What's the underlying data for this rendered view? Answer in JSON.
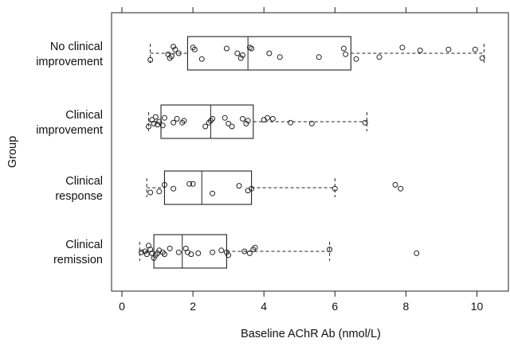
{
  "chart_data": {
    "type": "boxplot",
    "xlabel": "Baseline AChR Ab (nmol/L)",
    "ylabel": "Group",
    "xlim": [
      -0.2,
      10.9
    ],
    "xticks": [
      0,
      2,
      4,
      6,
      8,
      10
    ],
    "grid": false,
    "groups": [
      {
        "label_lines": [
          "No clinical",
          "improvement"
        ],
        "whisker_low": 0.8,
        "q1": 1.85,
        "median": 3.55,
        "q3": 6.45,
        "whisker_high": 10.2,
        "points": [
          {
            "x": 0.8,
            "j": 0.35
          },
          {
            "x": 1.3,
            "j": 0.05
          },
          {
            "x": 1.35,
            "j": 0.25
          },
          {
            "x": 1.4,
            "j": 0.15
          },
          {
            "x": 1.45,
            "j": -0.35
          },
          {
            "x": 1.5,
            "j": -0.2
          },
          {
            "x": 1.6,
            "j": 0.0
          },
          {
            "x": 2.0,
            "j": -0.3
          },
          {
            "x": 2.05,
            "j": -0.2
          },
          {
            "x": 2.25,
            "j": 0.3
          },
          {
            "x": 2.95,
            "j": -0.25
          },
          {
            "x": 3.25,
            "j": 0.0
          },
          {
            "x": 3.35,
            "j": 0.25
          },
          {
            "x": 3.4,
            "j": 0.1
          },
          {
            "x": 3.6,
            "j": -0.3
          },
          {
            "x": 3.65,
            "j": -0.25
          },
          {
            "x": 4.15,
            "j": 0.0
          },
          {
            "x": 4.45,
            "j": 0.2
          },
          {
            "x": 5.55,
            "j": 0.2
          },
          {
            "x": 6.25,
            "j": -0.25
          },
          {
            "x": 6.3,
            "j": 0.05
          },
          {
            "x": 6.6,
            "j": 0.3
          },
          {
            "x": 7.25,
            "j": 0.2
          },
          {
            "x": 7.9,
            "j": -0.3
          },
          {
            "x": 8.4,
            "j": -0.15
          },
          {
            "x": 9.2,
            "j": -0.2
          },
          {
            "x": 9.95,
            "j": -0.2
          },
          {
            "x": 10.15,
            "j": 0.25
          }
        ]
      },
      {
        "label_lines": [
          "Clinical",
          "improvement"
        ],
        "whisker_low": 0.75,
        "q1": 1.1,
        "median": 2.5,
        "q3": 3.7,
        "whisker_high": 6.9,
        "points": [
          {
            "x": 0.75,
            "j": 0.25
          },
          {
            "x": 0.85,
            "j": -0.1
          },
          {
            "x": 0.9,
            "j": 0.1
          },
          {
            "x": 0.95,
            "j": -0.25
          },
          {
            "x": 1.0,
            "j": 0.15
          },
          {
            "x": 1.05,
            "j": 0.0
          },
          {
            "x": 1.15,
            "j": 0.2
          },
          {
            "x": 1.2,
            "j": -0.2
          },
          {
            "x": 1.45,
            "j": 0.05
          },
          {
            "x": 1.55,
            "j": -0.15
          },
          {
            "x": 1.7,
            "j": 0.05
          },
          {
            "x": 1.75,
            "j": -0.05
          },
          {
            "x": 2.35,
            "j": 0.25
          },
          {
            "x": 2.45,
            "j": 0.05
          },
          {
            "x": 2.5,
            "j": -0.05
          },
          {
            "x": 2.55,
            "j": -0.15
          },
          {
            "x": 2.9,
            "j": -0.2
          },
          {
            "x": 3.0,
            "j": 0.1
          },
          {
            "x": 3.1,
            "j": 0.25
          },
          {
            "x": 3.4,
            "j": -0.15
          },
          {
            "x": 3.5,
            "j": 0.1
          },
          {
            "x": 3.55,
            "j": -0.05
          },
          {
            "x": 4.0,
            "j": -0.1
          },
          {
            "x": 4.1,
            "j": -0.2
          },
          {
            "x": 4.25,
            "j": -0.15
          },
          {
            "x": 4.75,
            "j": 0.05
          },
          {
            "x": 5.35,
            "j": 0.1
          },
          {
            "x": 6.85,
            "j": 0.05
          }
        ]
      },
      {
        "label_lines": [
          "Clinical",
          "response"
        ],
        "whisker_low": 0.7,
        "q1": 1.2,
        "median": 2.25,
        "q3": 3.65,
        "whisker_high": 6.0,
        "points": [
          {
            "x": 0.8,
            "j": 0.25
          },
          {
            "x": 1.05,
            "j": 0.2
          },
          {
            "x": 1.2,
            "j": -0.15
          },
          {
            "x": 1.45,
            "j": 0.05
          },
          {
            "x": 1.9,
            "j": -0.2
          },
          {
            "x": 2.0,
            "j": -0.2
          },
          {
            "x": 2.55,
            "j": 0.3
          },
          {
            "x": 3.3,
            "j": -0.1
          },
          {
            "x": 3.55,
            "j": 0.15
          },
          {
            "x": 3.65,
            "j": 0.05
          },
          {
            "x": 6.0,
            "j": 0.05
          },
          {
            "x": 7.7,
            "j": -0.15
          },
          {
            "x": 7.85,
            "j": 0.05
          }
        ]
      },
      {
        "label_lines": [
          "Clinical",
          "remission"
        ],
        "whisker_low": 0.5,
        "q1": 0.9,
        "median": 1.7,
        "q3": 2.95,
        "whisker_high": 5.85,
        "points": [
          {
            "x": 0.55,
            "j": 0.05
          },
          {
            "x": 0.65,
            "j": 0.0
          },
          {
            "x": 0.7,
            "j": 0.15
          },
          {
            "x": 0.75,
            "j": -0.3
          },
          {
            "x": 0.8,
            "j": -0.1
          },
          {
            "x": 0.85,
            "j": 0.1
          },
          {
            "x": 0.9,
            "j": 0.35
          },
          {
            "x": 0.95,
            "j": 0.2
          },
          {
            "x": 1.0,
            "j": 0.1
          },
          {
            "x": 1.05,
            "j": -0.05
          },
          {
            "x": 1.15,
            "j": 0.05
          },
          {
            "x": 1.2,
            "j": 0.15
          },
          {
            "x": 1.35,
            "j": -0.15
          },
          {
            "x": 1.6,
            "j": 0.05
          },
          {
            "x": 1.8,
            "j": -0.15
          },
          {
            "x": 1.85,
            "j": 0.05
          },
          {
            "x": 1.95,
            "j": 0.15
          },
          {
            "x": 2.15,
            "j": 0.1
          },
          {
            "x": 2.55,
            "j": 0.05
          },
          {
            "x": 2.8,
            "j": -0.05
          },
          {
            "x": 2.95,
            "j": 0.05
          },
          {
            "x": 3.0,
            "j": 0.2
          },
          {
            "x": 3.45,
            "j": 0.0
          },
          {
            "x": 3.6,
            "j": 0.1
          },
          {
            "x": 3.7,
            "j": -0.1
          },
          {
            "x": 3.75,
            "j": -0.2
          },
          {
            "x": 5.85,
            "j": -0.1
          },
          {
            "x": 8.3,
            "j": 0.1
          }
        ]
      }
    ]
  }
}
